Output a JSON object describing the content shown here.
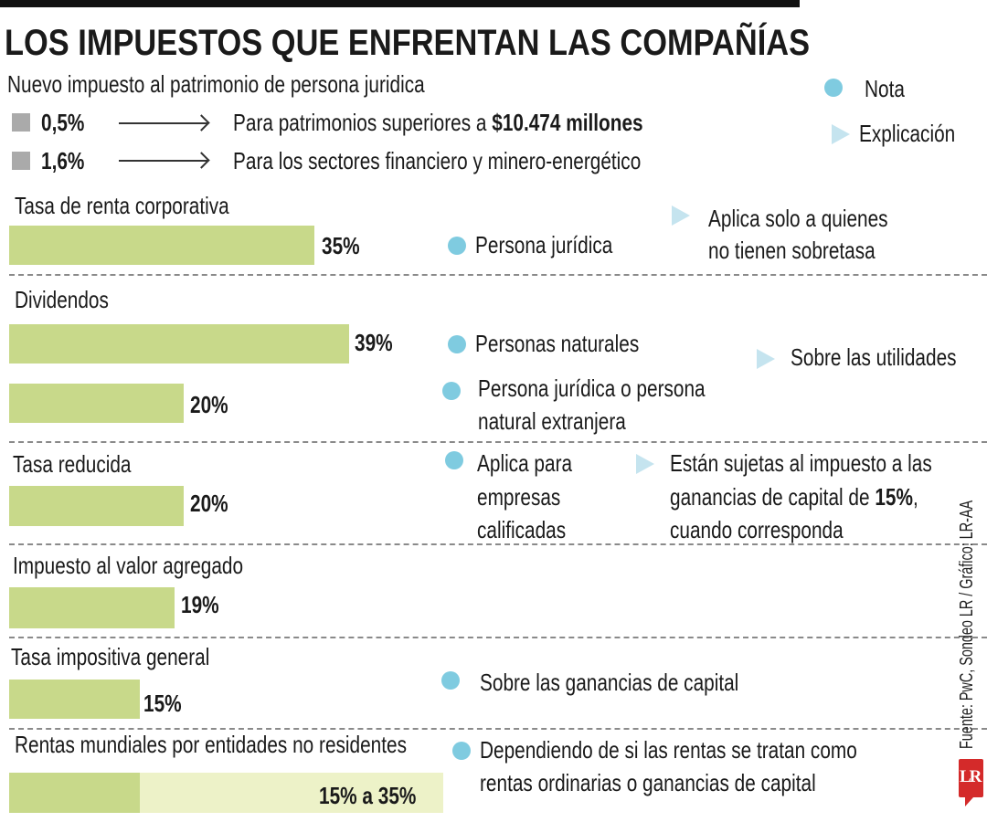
{
  "title": "LOS IMPUESTOS QUE ENFRENTAN LAS COMPAÑÍAS",
  "patrimonio": {
    "heading": "Nuevo impuesto al patrimonio de persona juridica",
    "rows": [
      {
        "rate": "0,5%",
        "text": "Para patrimonios superiores a ",
        "bold": "$10.474 millones"
      },
      {
        "rate": "1,6%",
        "text": "Para los sectores financiero y minero-energético",
        "bold": ""
      }
    ]
  },
  "legend": {
    "note": "Nota",
    "explanation": "Explicación"
  },
  "colors": {
    "bar": "#c8d98a",
    "bar_range": "#edf2c8",
    "note_dot": "#7fcbe0",
    "explanation_triangle": "#c5e4ef",
    "square": "#aaaaaa",
    "logo": "#d42a2a"
  },
  "chart_data": {
    "type": "bar",
    "orientation": "horizontal",
    "categories": [
      "Tasa de renta corporativa",
      "Dividendos",
      "Dividendos",
      "Tasa reducida",
      "Impuesto al valor agregado",
      "Tasa impositiva general",
      "Rentas mundiales por entidades no residentes"
    ],
    "values": [
      35,
      39,
      20,
      20,
      19,
      15,
      [
        15,
        35
      ]
    ],
    "labels": [
      "35%",
      "39%",
      "20%",
      "20%",
      "19%",
      "15%",
      "15% a 35%"
    ]
  },
  "sections": {
    "renta": {
      "title": "Tasa de renta corporativa",
      "value": "35%",
      "note": "Persona jurídica",
      "expl": [
        "Aplica solo a quienes",
        "no tienen sobretasa"
      ]
    },
    "dividendos": {
      "title": "Dividendos",
      "value1": "39%",
      "note1": "Personas naturales",
      "value2": "20%",
      "note2": [
        "Persona jurídica o persona",
        "natural extranjera"
      ],
      "expl": "Sobre las utilidades"
    },
    "reducida": {
      "title": "Tasa reducida",
      "value": "20%",
      "note": [
        "Aplica para",
        "empresas",
        "calificadas"
      ],
      "expl": [
        "Están sujetas al impuesto a las",
        "ganancias de capital de ",
        "15%",
        ",",
        "cuando corresponda"
      ]
    },
    "iva": {
      "title": "Impuesto al valor agregado",
      "value": "19%"
    },
    "general": {
      "title": "Tasa impositiva general",
      "value": "15%",
      "note": "Sobre las ganancias de capital"
    },
    "mundiales": {
      "title": "Rentas mundiales por entidades no residentes",
      "value": "15% a 35%",
      "note": [
        "Dependiendo de si las rentas se tratan como",
        "rentas ordinarias o ganancias de capital"
      ]
    }
  },
  "source": "Fuente: PwC, Sondeo LR / Gráfico: LR-AA",
  "logo": "LR"
}
